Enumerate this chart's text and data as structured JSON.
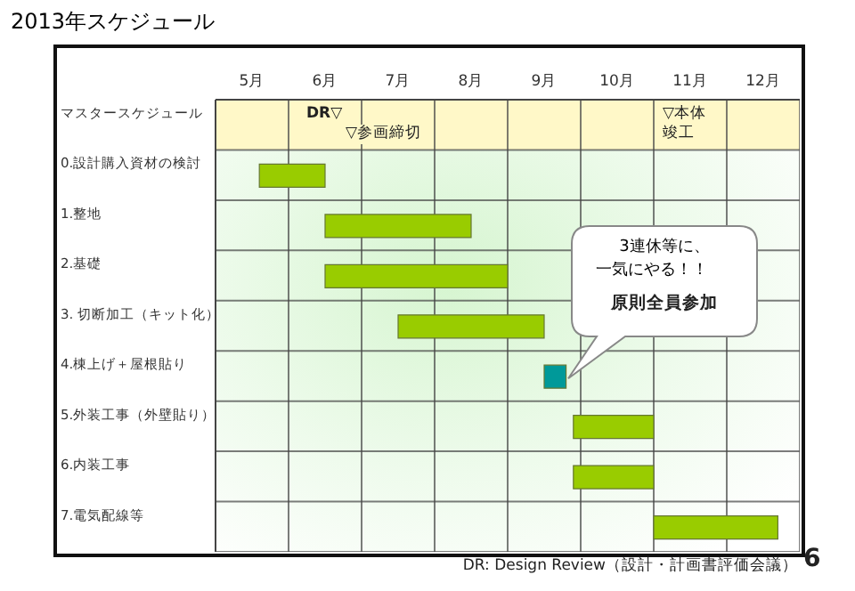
{
  "chart_data": {
    "type": "bar",
    "orientation": "horizontal",
    "title": "2013年スケジュール",
    "categories": [
      "マスタースケジュール",
      "0.設計購入資材の検討",
      "1.整地",
      "2.基礎",
      "3. 切断加工（キット化）",
      "4.棟上げ＋屋根貼り",
      "5.外装工事（外壁貼り）",
      "6.内装工事",
      "7.電気配線等"
    ],
    "base": [
      null,
      5.6,
      6.5,
      6.5,
      7.5,
      9.5,
      9.9,
      9.9,
      11
    ],
    "values": [
      null,
      0.9,
      2,
      2.5,
      2,
      0.3,
      1.1,
      1.1,
      1.7
    ],
    "colors": [
      "#99cc00",
      "#99cc00",
      "#99cc00",
      "#99cc00",
      "#99cc00",
      "#009999",
      "#99cc00",
      "#99cc00",
      "#99cc00"
    ],
    "xlim": [
      5,
      13
    ],
    "xticks": [
      {
        "value": 5,
        "label": null
      },
      {
        "value": 5.5,
        "label": "5月"
      },
      {
        "value": 6,
        "label": null
      },
      {
        "value": 6.5,
        "label": "6月"
      },
      {
        "value": 7,
        "label": null
      },
      {
        "value": 7.5,
        "label": "7月"
      },
      {
        "value": 8,
        "label": null
      },
      {
        "value": 8.5,
        "label": "8月"
      },
      {
        "value": 9,
        "label": null
      },
      {
        "value": 9.5,
        "label": "9月"
      },
      {
        "value": 10,
        "label": null
      },
      {
        "value": 10.5,
        "label": "10月"
      },
      {
        "value": 11,
        "label": null
      },
      {
        "value": 11.5,
        "label": "11月"
      },
      {
        "value": 12,
        "label": null
      },
      {
        "value": 12.5,
        "label": "12月"
      },
      {
        "value": 13,
        "label": null
      }
    ],
    "grid": true,
    "annotations": [
      "DR▽",
      "▽参画締切",
      "▽本体竣工",
      "3連休等に、一気にやる！！",
      "原則全員参加",
      "DR: Design Review（設計・計画書評価会議）",
      "6"
    ]
  }
}
